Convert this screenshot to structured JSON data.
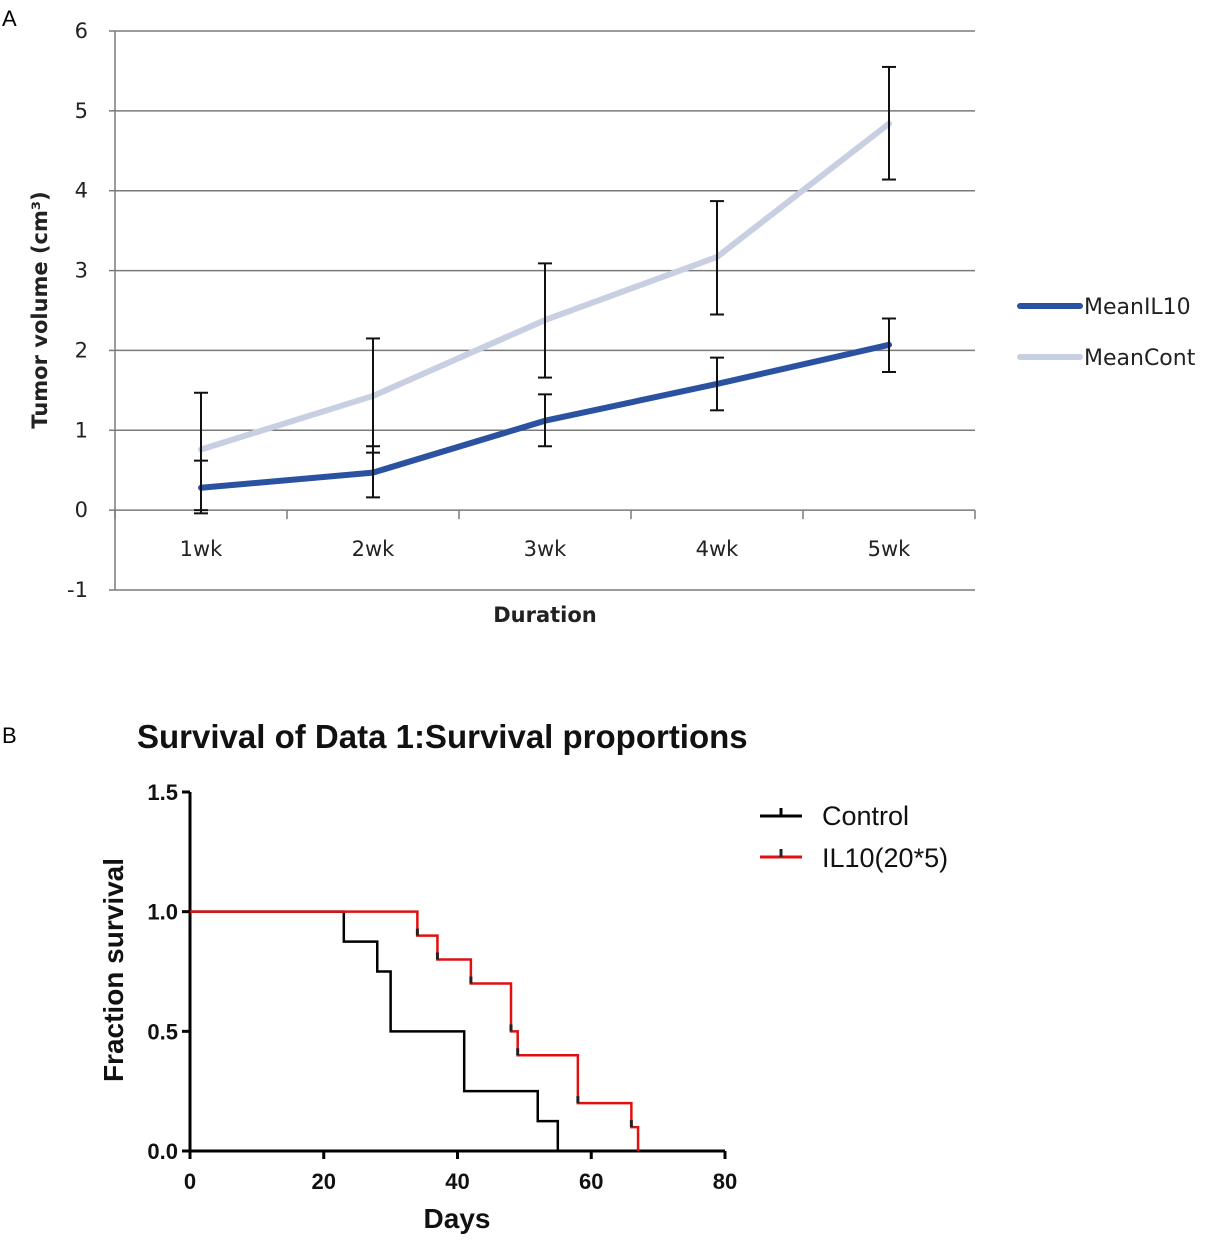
{
  "panel_a_label": "A",
  "panel_b_label": "B",
  "chart_data": [
    {
      "type": "line",
      "title": "",
      "xlabel": "Duration",
      "ylabel": "Tumor volume (cm³)",
      "categories": [
        "1wk",
        "2wk",
        "3wk",
        "4wk",
        "5wk"
      ],
      "ylim": [
        -1,
        6
      ],
      "yticks": [
        "-1",
        "0",
        "1",
        "2",
        "3",
        "4",
        "5",
        "6"
      ],
      "grid": true,
      "legend_position": "right",
      "series": [
        {
          "name": "MeanIL10",
          "color": "#2a52a0",
          "values": [
            0.28,
            0.47,
            1.12,
            1.58,
            2.07
          ],
          "err_low": [
            0.0,
            0.16,
            0.8,
            1.25,
            1.73
          ],
          "err_high": [
            0.62,
            0.8,
            1.45,
            1.91,
            2.4
          ]
        },
        {
          "name": "MeanCont",
          "color": "#c9cfe3",
          "values": [
            0.76,
            1.43,
            2.38,
            3.17,
            4.84
          ],
          "err_low": [
            -0.04,
            0.72,
            1.66,
            2.45,
            4.14
          ],
          "err_high": [
            1.47,
            2.15,
            3.09,
            3.87,
            5.55
          ]
        }
      ]
    },
    {
      "type": "line",
      "title": "Survival of Data 1:Survival proportions",
      "xlabel": "Days",
      "ylabel": "Fraction survival",
      "xlim": [
        0,
        80
      ],
      "ylim": [
        0,
        1.5
      ],
      "xticks": [
        "0",
        "20",
        "40",
        "60",
        "80"
      ],
      "yticks": [
        "0.0",
        "0.5",
        "1.0",
        "1.5"
      ],
      "legend_position": "top-right",
      "series": [
        {
          "name": "Control",
          "color": "#000000",
          "steps": [
            [
              0,
              1.0
            ],
            [
              23,
              0.875
            ],
            [
              28,
              0.75
            ],
            [
              30,
              0.5
            ],
            [
              41,
              0.25
            ],
            [
              52,
              0.125
            ],
            [
              55,
              0.0
            ]
          ],
          "censored": []
        },
        {
          "name": "IL10(20*5)",
          "color": "#e01010",
          "steps": [
            [
              0,
              1.0
            ],
            [
              34,
              0.9
            ],
            [
              37,
              0.8
            ],
            [
              42,
              0.7
            ],
            [
              48,
              0.5
            ],
            [
              49,
              0.4
            ],
            [
              58,
              0.2
            ],
            [
              66,
              0.1
            ],
            [
              67,
              0.0
            ]
          ],
          "censored": [
            [
              34,
              0.9
            ],
            [
              37,
              0.8
            ],
            [
              42,
              0.7
            ],
            [
              48,
              0.5
            ],
            [
              49,
              0.4
            ],
            [
              58,
              0.2
            ],
            [
              66,
              0.1
            ]
          ]
        }
      ]
    }
  ]
}
